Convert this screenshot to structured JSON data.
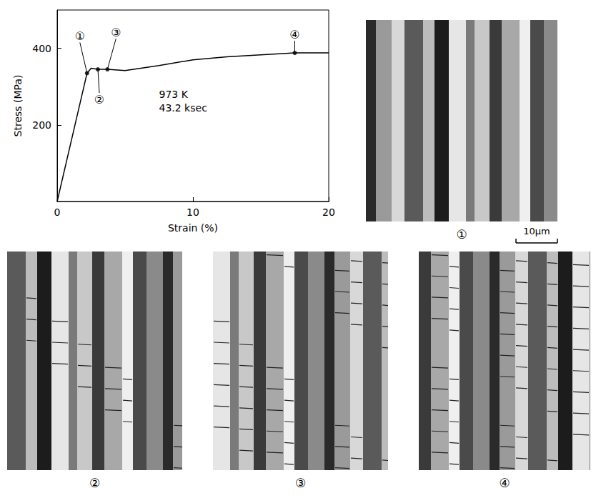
{
  "chart_data": {
    "type": "line",
    "xlabel": "Strain (%)",
    "ylabel": "Stress (MPa)",
    "x": [
      0,
      2.2,
      2.5,
      3.0,
      3.7,
      5,
      7.5,
      10,
      12.5,
      15,
      17.5,
      20
    ],
    "values": [
      0,
      335,
      348,
      345,
      345,
      342,
      355,
      370,
      378,
      383,
      388,
      388
    ],
    "color": "#000000",
    "xlim": [
      0,
      20
    ],
    "xticks": [
      0,
      10,
      20
    ],
    "ylim": [
      0,
      500
    ],
    "yticks": [
      200,
      400
    ],
    "grid": false,
    "points": [
      {
        "label": "①",
        "x": 2.2,
        "y": 335
      },
      {
        "label": "②",
        "x": 3.0,
        "y": 345
      },
      {
        "label": "③",
        "x": 3.7,
        "y": 345
      },
      {
        "label": "④",
        "x": 17.5,
        "y": 388
      }
    ],
    "annotations": [
      {
        "text": "973 K",
        "x": 7.5,
        "y": 280
      },
      {
        "text": "43.2 ksec",
        "x": 7.5,
        "y": 245
      }
    ]
  },
  "micrographs": {
    "panels": [
      "①",
      "②",
      "③",
      "④"
    ],
    "scale_bar": "10μm"
  }
}
